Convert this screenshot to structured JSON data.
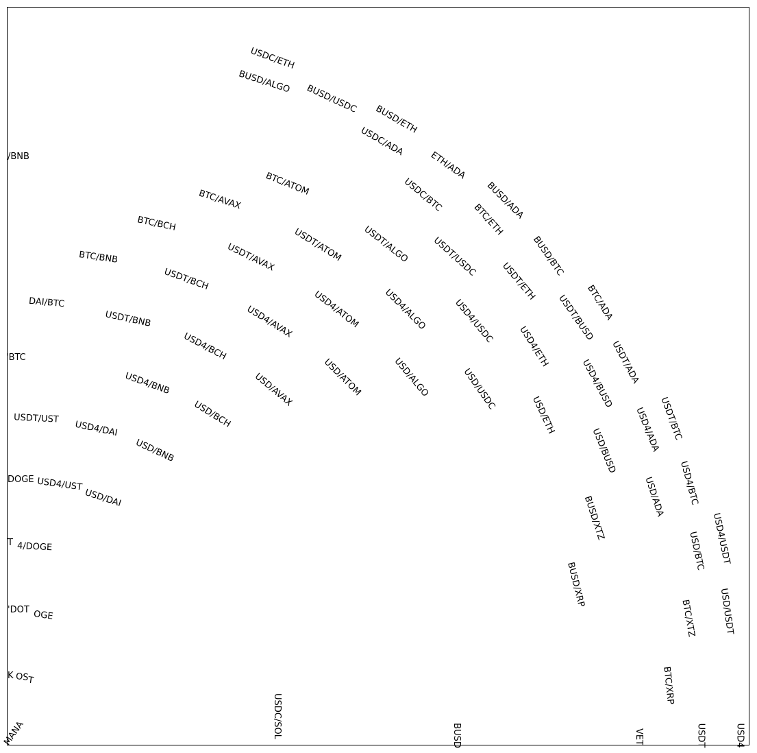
{
  "labels": [
    "USDC/ETH",
    "BUSD/ALGO",
    "BUSD/USDC",
    "BUSD/ETH",
    "USDC/ADA",
    "ETH/ADA",
    "BUSD/ADA",
    "USDC/BTC",
    "BTC/ETH",
    "BUSD/BTC",
    "BTC/ATOM",
    "BTC/AVAX",
    "BTC/BCH",
    "BTC/BNB",
    "USDT/ATOM",
    "USDT/ALGO",
    "USDT/USDC",
    "USDT/ETH",
    "BTC/ADA",
    "USDT/AVAX",
    "USDT/BCH",
    "DAI/BTC",
    "USDT/BNB",
    "USD4/ATOM",
    "USD4/ALGO",
    "USD4/USDC",
    "USD4/ETH",
    "USDT/BUSD",
    "USDT/ADA",
    "USD4/AVAX",
    "USD4/BCH",
    "USD4/BNB",
    "USD/ATOM",
    "USD/ALGO",
    "USD/USDC",
    "USD/ETH",
    "USD4/BUSD",
    "USD/AVAX",
    "USD/BCH",
    "USD/BNB",
    "USDT/UST",
    "USD4/DAI",
    "USD/DAI",
    "USD4/UST",
    "DOGE",
    "/BNB",
    "'BTC",
    "USDT/BTC",
    "USD4/ADA",
    "USD/BUSD",
    "USD4/BTC",
    "USD/ADA",
    "BUSD/XTZ",
    "USD4/USDT",
    "USD/BTC",
    "BUSD/XRP",
    "USD/USDT",
    "BTC/XTZ",
    "BTC/XRP",
    "4/DOGE",
    "T",
    "'DOT",
    "OGE",
    "K",
    "OS",
    "T",
    "MANA",
    "USDC/SOL",
    "BUSD",
    "VET",
    "USDT",
    "USD4"
  ]
}
